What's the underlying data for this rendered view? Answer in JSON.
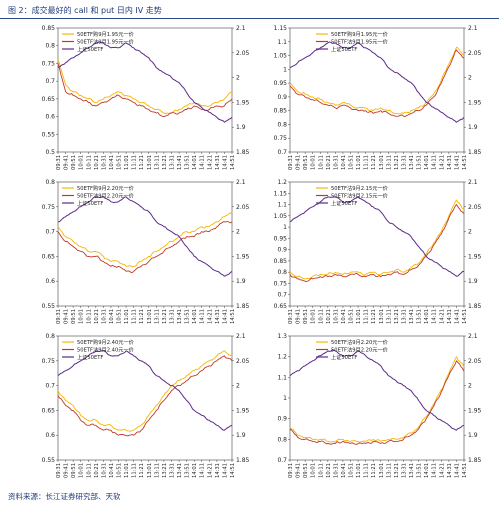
{
  "figure": {
    "title": "图 2：成交最好的 call 和 put 日内 IV 走势",
    "source": "资料来源：长江证券研究部、天软"
  },
  "colors": {
    "call": "#F5B700",
    "put": "#C0392B",
    "underlying": "#5B2C8A"
  },
  "chart_data": [
    {
      "type": "line",
      "x": [
        "09:31",
        "09:41",
        "09:51",
        "10:01",
        "10:11",
        "10:21",
        "10:31",
        "10:41",
        "10:51",
        "11:01",
        "11:11",
        "11:21",
        "13:01",
        "13:11",
        "13:21",
        "13:31",
        "13:41",
        "13:51",
        "14:01",
        "14:11",
        "14:21",
        "14:31",
        "14:41",
        "14:51"
      ],
      "ylim": [
        0.5,
        0.85
      ],
      "yticks": [
        "0.85",
        "0.8",
        "0.75",
        "0.7",
        "0.65",
        "0.6",
        "0.55",
        "0.5"
      ],
      "y2lim": [
        1.85,
        2.1
      ],
      "y2ticks": [
        "2.1",
        "2.05",
        "2",
        "1.95",
        "1.9",
        "1.85"
      ],
      "legend_position": "top-left",
      "series": [
        {
          "name": "50ETF购9月1.95元一价",
          "axis": "left",
          "color": "#F5B700",
          "values": [
            0.76,
            0.69,
            0.67,
            0.66,
            0.65,
            0.64,
            0.65,
            0.66,
            0.67,
            0.66,
            0.65,
            0.64,
            0.63,
            0.62,
            0.61,
            0.61,
            0.62,
            0.63,
            0.64,
            0.63,
            0.63,
            0.64,
            0.65,
            0.67
          ]
        },
        {
          "name": "50ETF沽9月1.95元一价",
          "axis": "left",
          "color": "#C0392B",
          "values": [
            0.75,
            0.67,
            0.66,
            0.65,
            0.64,
            0.63,
            0.64,
            0.65,
            0.66,
            0.65,
            0.64,
            0.63,
            0.62,
            0.61,
            0.6,
            0.61,
            0.61,
            0.62,
            0.63,
            0.62,
            0.62,
            0.63,
            0.63,
            0.65
          ]
        },
        {
          "name": "上证50ETF",
          "axis": "right",
          "color": "#5B2C8A",
          "values": [
            2.02,
            2.03,
            2.04,
            2.05,
            2.06,
            2.07,
            2.07,
            2.06,
            2.06,
            2.07,
            2.06,
            2.05,
            2.04,
            2.02,
            2.01,
            2.0,
            1.99,
            1.97,
            1.95,
            1.94,
            1.93,
            1.92,
            1.91,
            1.92
          ]
        }
      ]
    },
    {
      "type": "line",
      "x": [
        "09:31",
        "09:41",
        "09:51",
        "10:01",
        "10:11",
        "10:21",
        "10:31",
        "10:41",
        "10:51",
        "11:01",
        "11:11",
        "11:21",
        "13:01",
        "13:11",
        "13:21",
        "13:31",
        "13:41",
        "13:51",
        "14:01",
        "14:11",
        "14:21",
        "14:31",
        "14:41",
        "14:51"
      ],
      "ylim": [
        0.7,
        1.15
      ],
      "yticks": [
        "1.15",
        "1.1",
        "1.05",
        "1",
        "0.95",
        "0.9",
        "0.85",
        "0.8",
        "0.75",
        "0.7"
      ],
      "y2lim": [
        1.85,
        2.1
      ],
      "y2ticks": [
        "2.1",
        "2.05",
        "2",
        "1.95",
        "1.9",
        "1.85"
      ],
      "legend_position": "top-center",
      "series": [
        {
          "name": "50ETF购9月1.95元一价",
          "axis": "left",
          "color": "#F5B700",
          "values": [
            0.95,
            0.92,
            0.91,
            0.9,
            0.89,
            0.88,
            0.87,
            0.88,
            0.87,
            0.86,
            0.86,
            0.85,
            0.86,
            0.85,
            0.84,
            0.84,
            0.85,
            0.86,
            0.88,
            0.91,
            0.96,
            1.02,
            1.08,
            1.05
          ]
        },
        {
          "name": "50ETF沽9月1.95元一价",
          "axis": "left",
          "color": "#C0392B",
          "values": [
            0.94,
            0.91,
            0.9,
            0.89,
            0.88,
            0.87,
            0.86,
            0.87,
            0.86,
            0.85,
            0.85,
            0.84,
            0.85,
            0.84,
            0.83,
            0.83,
            0.84,
            0.85,
            0.87,
            0.9,
            0.95,
            1.01,
            1.07,
            1.04
          ]
        },
        {
          "name": "上证50ETF",
          "axis": "right",
          "color": "#5B2C8A",
          "values": [
            2.02,
            2.03,
            2.04,
            2.05,
            2.06,
            2.07,
            2.07,
            2.06,
            2.06,
            2.07,
            2.06,
            2.05,
            2.04,
            2.02,
            2.01,
            2.0,
            1.99,
            1.97,
            1.95,
            1.94,
            1.93,
            1.92,
            1.91,
            1.92
          ]
        }
      ]
    },
    {
      "type": "line",
      "x": [
        "09:31",
        "09:41",
        "09:51",
        "10:01",
        "10:11",
        "10:21",
        "10:31",
        "10:41",
        "10:51",
        "11:01",
        "11:11",
        "11:21",
        "13:01",
        "13:11",
        "13:21",
        "13:31",
        "13:41",
        "13:51",
        "14:01",
        "14:11",
        "14:21",
        "14:31",
        "14:41",
        "14:51"
      ],
      "ylim": [
        0.55,
        0.8
      ],
      "yticks": [
        "0.8",
        "0.75",
        "0.7",
        "0.65",
        "0.6",
        "0.55"
      ],
      "y2lim": [
        1.85,
        2.1
      ],
      "y2ticks": [
        "2.1",
        "2.05",
        "2",
        "1.95",
        "1.9",
        "1.85"
      ],
      "legend_position": "top-left",
      "series": [
        {
          "name": "50ETF购9月2.20元一价",
          "axis": "left",
          "color": "#F5B700",
          "values": [
            0.71,
            0.69,
            0.68,
            0.67,
            0.66,
            0.66,
            0.65,
            0.64,
            0.64,
            0.63,
            0.63,
            0.64,
            0.65,
            0.66,
            0.67,
            0.68,
            0.69,
            0.7,
            0.7,
            0.71,
            0.71,
            0.72,
            0.73,
            0.74
          ]
        },
        {
          "name": "50ETF沽9月2.20元一价",
          "axis": "left",
          "color": "#C0392B",
          "values": [
            0.7,
            0.68,
            0.67,
            0.66,
            0.65,
            0.65,
            0.64,
            0.63,
            0.63,
            0.62,
            0.62,
            0.63,
            0.64,
            0.65,
            0.66,
            0.67,
            0.68,
            0.69,
            0.69,
            0.7,
            0.7,
            0.71,
            0.72,
            0.72
          ]
        },
        {
          "name": "上证50ETF",
          "axis": "right",
          "color": "#5B2C8A",
          "values": [
            2.02,
            2.03,
            2.04,
            2.05,
            2.06,
            2.07,
            2.07,
            2.06,
            2.06,
            2.07,
            2.06,
            2.05,
            2.04,
            2.02,
            2.01,
            2.0,
            1.99,
            1.97,
            1.95,
            1.94,
            1.93,
            1.92,
            1.91,
            1.92
          ]
        }
      ]
    },
    {
      "type": "line",
      "x": [
        "09:31",
        "09:41",
        "09:51",
        "10:01",
        "10:11",
        "10:21",
        "10:31",
        "10:41",
        "10:51",
        "11:01",
        "11:11",
        "11:21",
        "13:01",
        "13:11",
        "13:21",
        "13:31",
        "13:41",
        "13:51",
        "14:01",
        "14:11",
        "14:21",
        "14:31",
        "14:41",
        "14:51"
      ],
      "ylim": [
        0.65,
        1.2
      ],
      "yticks": [
        "1.2",
        "1.15",
        "1.1",
        "1.05",
        "1",
        "0.95",
        "0.9",
        "0.85",
        "0.8",
        "0.75",
        "0.7",
        "0.65"
      ],
      "y2lim": [
        1.85,
        2.1
      ],
      "y2ticks": [
        "2.1",
        "2.05",
        "2",
        "1.95",
        "1.9",
        "1.85"
      ],
      "legend_position": "top-center",
      "series": [
        {
          "name": "50ETF沽9月2.15元一价",
          "axis": "left",
          "color": "#F5B700",
          "values": [
            0.8,
            0.78,
            0.77,
            0.78,
            0.79,
            0.79,
            0.8,
            0.79,
            0.8,
            0.8,
            0.79,
            0.8,
            0.79,
            0.8,
            0.81,
            0.8,
            0.82,
            0.84,
            0.88,
            0.93,
            0.98,
            1.05,
            1.12,
            1.08
          ]
        },
        {
          "name": "50ETF沽9月2.15元一价",
          "axis": "left",
          "color": "#C0392B",
          "values": [
            0.79,
            0.77,
            0.76,
            0.77,
            0.78,
            0.78,
            0.79,
            0.78,
            0.79,
            0.79,
            0.78,
            0.79,
            0.78,
            0.79,
            0.8,
            0.79,
            0.81,
            0.83,
            0.87,
            0.92,
            0.97,
            1.04,
            1.1,
            1.06
          ]
        },
        {
          "name": "上证50ETF",
          "axis": "right",
          "color": "#5B2C8A",
          "values": [
            2.02,
            2.03,
            2.04,
            2.05,
            2.06,
            2.07,
            2.07,
            2.06,
            2.06,
            2.07,
            2.06,
            2.05,
            2.04,
            2.02,
            2.01,
            2.0,
            1.99,
            1.97,
            1.95,
            1.94,
            1.93,
            1.92,
            1.91,
            1.92
          ]
        }
      ]
    },
    {
      "type": "line",
      "x": [
        "09:31",
        "09:41",
        "09:51",
        "10:01",
        "10:11",
        "10:21",
        "10:31",
        "10:41",
        "10:51",
        "11:01",
        "11:11",
        "11:21",
        "13:01",
        "13:11",
        "13:21",
        "13:31",
        "13:41",
        "13:51",
        "14:01",
        "14:11",
        "14:21",
        "14:31",
        "14:41",
        "14:51"
      ],
      "ylim": [
        0.55,
        0.8
      ],
      "yticks": [
        "0.8",
        "0.75",
        "0.7",
        "0.65",
        "0.6",
        "0.55"
      ],
      "y2lim": [
        1.85,
        2.1
      ],
      "y2ticks": [
        "2.1",
        "2.05",
        "2",
        "1.95",
        "1.9",
        "1.85"
      ],
      "legend_position": "top-left",
      "series": [
        {
          "name": "50ETF购9月2.40元一价",
          "axis": "left",
          "color": "#F5B700",
          "values": [
            0.69,
            0.67,
            0.66,
            0.64,
            0.63,
            0.63,
            0.62,
            0.62,
            0.61,
            0.61,
            0.61,
            0.62,
            0.64,
            0.66,
            0.68,
            0.7,
            0.71,
            0.72,
            0.73,
            0.74,
            0.75,
            0.76,
            0.77,
            0.76
          ]
        },
        {
          "name": "50ETF沽9月2.40元一价",
          "axis": "left",
          "color": "#C0392B",
          "values": [
            0.68,
            0.66,
            0.65,
            0.63,
            0.62,
            0.62,
            0.61,
            0.61,
            0.6,
            0.6,
            0.6,
            0.61,
            0.63,
            0.65,
            0.67,
            0.69,
            0.7,
            0.71,
            0.72,
            0.73,
            0.74,
            0.75,
            0.76,
            0.75
          ]
        },
        {
          "name": "上证50ETF",
          "axis": "right",
          "color": "#5B2C8A",
          "values": [
            2.02,
            2.03,
            2.04,
            2.05,
            2.06,
            2.07,
            2.07,
            2.06,
            2.06,
            2.07,
            2.06,
            2.05,
            2.04,
            2.02,
            2.01,
            2.0,
            1.99,
            1.97,
            1.95,
            1.94,
            1.93,
            1.92,
            1.91,
            1.92
          ]
        }
      ]
    },
    {
      "type": "line",
      "x": [
        "09:31",
        "09:41",
        "09:51",
        "10:01",
        "10:11",
        "10:21",
        "10:31",
        "10:41",
        "10:51",
        "11:01",
        "11:11",
        "11:21",
        "13:01",
        "13:11",
        "13:21",
        "13:31",
        "13:41",
        "13:51",
        "14:01",
        "14:11",
        "14:21",
        "14:31",
        "14:41",
        "14:51"
      ],
      "ylim": [
        0.7,
        1.3
      ],
      "yticks": [
        "1.3",
        "1.2",
        "1.1",
        "1",
        "0.9",
        "0.8",
        "0.7"
      ],
      "y2lim": [
        1.85,
        2.1
      ],
      "y2ticks": [
        "2.1",
        "2.05",
        "2",
        "1.95",
        "1.9",
        "1.85"
      ],
      "legend_position": "top-center",
      "series": [
        {
          "name": "50ETF沽9月2.20元一价",
          "axis": "left",
          "color": "#F5B700",
          "values": [
            0.86,
            0.82,
            0.81,
            0.8,
            0.8,
            0.79,
            0.79,
            0.8,
            0.79,
            0.79,
            0.79,
            0.8,
            0.79,
            0.8,
            0.8,
            0.81,
            0.83,
            0.86,
            0.91,
            0.97,
            1.04,
            1.12,
            1.2,
            1.15
          ]
        },
        {
          "name": "50ETF沽9月2.20元一价",
          "axis": "left",
          "color": "#C0392B",
          "values": [
            0.85,
            0.81,
            0.8,
            0.79,
            0.79,
            0.78,
            0.78,
            0.79,
            0.78,
            0.78,
            0.78,
            0.79,
            0.78,
            0.79,
            0.79,
            0.8,
            0.82,
            0.85,
            0.9,
            0.96,
            1.03,
            1.11,
            1.18,
            1.13
          ]
        },
        {
          "name": "上证50ETF",
          "axis": "right",
          "color": "#5B2C8A",
          "values": [
            2.02,
            2.03,
            2.04,
            2.05,
            2.06,
            2.07,
            2.07,
            2.06,
            2.06,
            2.07,
            2.06,
            2.05,
            2.04,
            2.02,
            2.01,
            2.0,
            1.99,
            1.97,
            1.95,
            1.94,
            1.93,
            1.92,
            1.91,
            1.92
          ]
        }
      ]
    }
  ]
}
